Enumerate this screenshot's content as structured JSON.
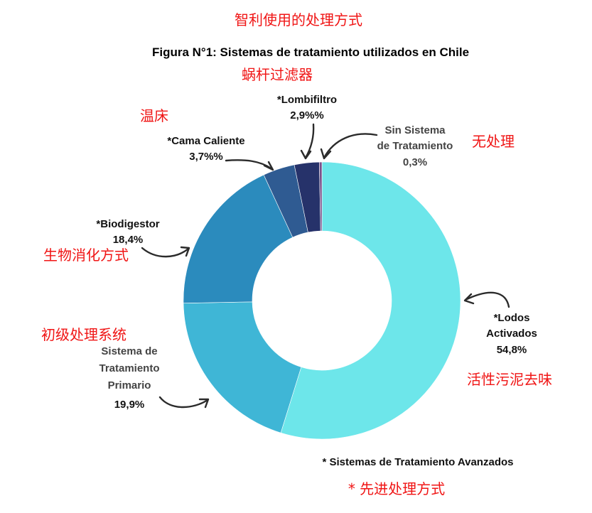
{
  "annotations_cn": {
    "top": "智利使用的处理方式",
    "lombifiltro": "蜗杆过滤器",
    "cama": "温床",
    "sin": "无处理",
    "biodigestor": "生物消化方式",
    "primario": "初级处理系统",
    "lodos": "活性污泥去味",
    "avanzados": "* 先进处理方式"
  },
  "chart_data": {
    "type": "pie",
    "variant": "donut",
    "title": "Figura N°1: Sistemas de tratamiento utilizados en Chile",
    "footnote": "* Sistemas de Tratamiento Avanzados",
    "legend": "none",
    "slices": [
      {
        "label": "*Lodos Activados",
        "label_lines": [
          "*Lodos",
          "Activados"
        ],
        "value_label": "54,8%",
        "value": 54.8,
        "color": "#6de6ea"
      },
      {
        "label": "Sistema de Tratamiento Primario",
        "label_lines": [
          "Sistema de",
          "Tratamiento",
          "Primario"
        ],
        "value_label": "19,9%",
        "value": 19.9,
        "color": "#3fb6d6"
      },
      {
        "label": "*Biodigestor",
        "label_lines": [
          "*Biodigestor"
        ],
        "value_label": "18,4%",
        "value": 18.4,
        "color": "#2b8bbd"
      },
      {
        "label": "*Cama Caliente",
        "label_lines": [
          "*Cama Caliente"
        ],
        "value_label": "3,7%%",
        "value": 3.7,
        "color": "#2f5b92"
      },
      {
        "label": "*Lombifiltro",
        "label_lines": [
          "*Lombifiltro"
        ],
        "value_label": "2,9%%",
        "value": 2.9,
        "color": "#26326a"
      },
      {
        "label": "Sin Sistema de Tratamiento",
        "label_lines": [
          "Sin Sistema",
          "de Tratamiento"
        ],
        "value_label": "0,3%",
        "value": 0.3,
        "color": "#7a4f8a"
      }
    ]
  }
}
